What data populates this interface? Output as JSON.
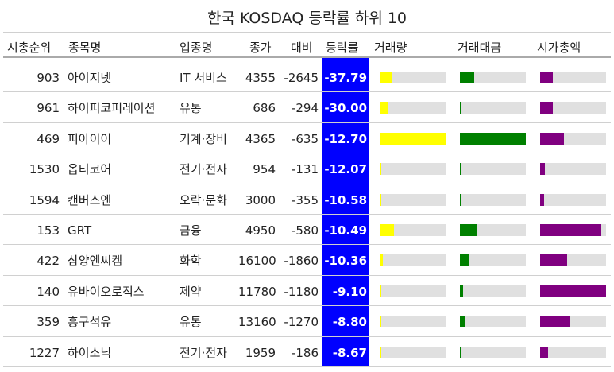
{
  "title": "한국 KOSDAQ 등락률 하위 10",
  "columns": [
    "시총순위",
    "종목명",
    "업종명",
    "종가",
    "대비",
    "등락률",
    "거래량",
    "거래대금",
    "시가총액"
  ],
  "colors": {
    "highlight": "#0000ff",
    "volume": "#ffff00",
    "trade_value": "#008000",
    "market_cap": "#800080",
    "bar_bg": "#e0e0e0"
  },
  "chart_data": {
    "type": "table",
    "title": "한국 KOSDAQ 등락률 하위 10",
    "rows": [
      {
        "rank": "903",
        "name": "아이지넷",
        "sector": "IT 서비스",
        "close": "4355",
        "change": "-2645",
        "rate": "-37.79",
        "volume": 0.18,
        "trade_value": 0.22,
        "market_cap": 0.19
      },
      {
        "rank": "961",
        "name": "하이퍼코퍼레이션",
        "sector": "유통",
        "close": "686",
        "change": "-294",
        "rate": "-30.00",
        "volume": 0.12,
        "trade_value": 0.02,
        "market_cap": 0.19
      },
      {
        "rank": "469",
        "name": "피아이이",
        "sector": "기계·장비",
        "close": "4365",
        "change": "-635",
        "rate": "-12.70",
        "volume": 1.0,
        "trade_value": 1.0,
        "market_cap": 0.36
      },
      {
        "rank": "1530",
        "name": "옵티코어",
        "sector": "전기·전자",
        "close": "954",
        "change": "-131",
        "rate": "-12.07",
        "volume": 0.02,
        "trade_value": 0.01,
        "market_cap": 0.07
      },
      {
        "rank": "1594",
        "name": "캔버스엔",
        "sector": "오락·문화",
        "close": "3000",
        "change": "-355",
        "rate": "-10.58",
        "volume": 0.01,
        "trade_value": 0.01,
        "market_cap": 0.06
      },
      {
        "rank": "153",
        "name": "GRT",
        "sector": "금융",
        "close": "4950",
        "change": "-580",
        "rate": "-10.49",
        "volume": 0.22,
        "trade_value": 0.26,
        "market_cap": 0.93
      },
      {
        "rank": "422",
        "name": "삼양엔씨켐",
        "sector": "화학",
        "close": "16100",
        "change": "-1860",
        "rate": "-10.36",
        "volume": 0.05,
        "trade_value": 0.14,
        "market_cap": 0.41
      },
      {
        "rank": "140",
        "name": "유바이오로직스",
        "sector": "제약",
        "close": "11780",
        "change": "-1180",
        "rate": "-9.10",
        "volume": 0.02,
        "trade_value": 0.05,
        "market_cap": 1.0
      },
      {
        "rank": "359",
        "name": "흥구석유",
        "sector": "유통",
        "close": "13160",
        "change": "-1270",
        "rate": "-8.80",
        "volume": 0.02,
        "trade_value": 0.08,
        "market_cap": 0.46
      },
      {
        "rank": "1227",
        "name": "하이소닉",
        "sector": "전기·전자",
        "close": "1959",
        "change": "-186",
        "rate": "-8.67",
        "volume": 0.01,
        "trade_value": 0.01,
        "market_cap": 0.12
      }
    ]
  }
}
